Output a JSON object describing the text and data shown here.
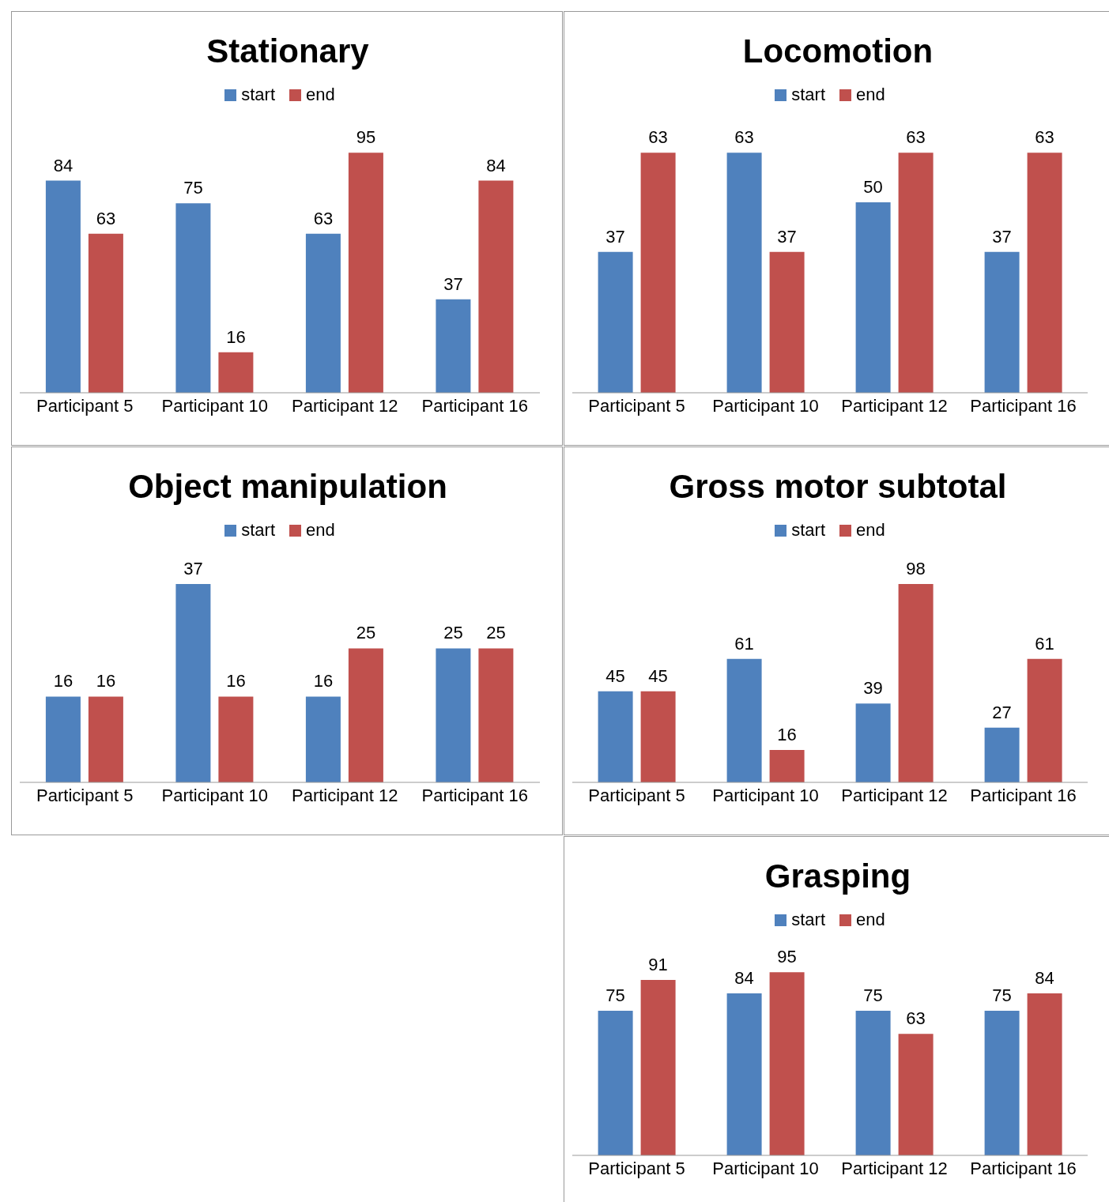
{
  "chart_data": [
    {
      "type": "bar",
      "title": "Stationary",
      "categories": [
        "Participant 5",
        "Participant 10",
        "Participant 12",
        "Participant 16"
      ],
      "series": [
        {
          "name": "start",
          "color": "#4f81bd",
          "values": [
            84,
            75,
            63,
            37
          ]
        },
        {
          "name": "end",
          "color": "#c0504d",
          "values": [
            63,
            16,
            95,
            84
          ]
        }
      ],
      "tick_labels": "x",
      "data_labels": true,
      "legend": "top",
      "grid": false
    },
    {
      "type": "bar",
      "title": "Locomotion",
      "categories": [
        "Participant 5",
        "Participant 10",
        "Participant 12",
        "Participant 16"
      ],
      "series": [
        {
          "name": "start",
          "color": "#4f81bd",
          "values": [
            37,
            63,
            50,
            37
          ]
        },
        {
          "name": "end",
          "color": "#c0504d",
          "values": [
            63,
            37,
            63,
            63
          ]
        }
      ],
      "tick_labels": "x",
      "data_labels": true,
      "legend": "top",
      "grid": false
    },
    {
      "type": "bar",
      "title": "Object manipulation",
      "categories": [
        "Participant 5",
        "Participant 10",
        "Participant 12",
        "Participant 16"
      ],
      "series": [
        {
          "name": "start",
          "color": "#4f81bd",
          "values": [
            16,
            37,
            16,
            25
          ]
        },
        {
          "name": "end",
          "color": "#c0504d",
          "values": [
            16,
            16,
            25,
            25
          ]
        }
      ],
      "tick_labels": "x",
      "data_labels": true,
      "legend": "top",
      "grid": false
    },
    {
      "type": "bar",
      "title": "Gross motor subtotal",
      "categories": [
        "Participant 5",
        "Participant 10",
        "Participant 12",
        "Participant 16"
      ],
      "series": [
        {
          "name": "start",
          "color": "#4f81bd",
          "values": [
            45,
            61,
            39,
            27
          ]
        },
        {
          "name": "end",
          "color": "#c0504d",
          "values": [
            45,
            16,
            98,
            61
          ]
        }
      ],
      "tick_labels": "x",
      "data_labels": true,
      "legend": "top",
      "grid": false
    },
    {
      "type": "bar",
      "title": "Grasping",
      "categories": [
        "Participant 5",
        "Participant 10",
        "Participant 12",
        "Participant 16"
      ],
      "series": [
        {
          "name": "start",
          "color": "#4f81bd",
          "values": [
            75,
            84,
            75,
            75
          ]
        },
        {
          "name": "end",
          "color": "#c0504d",
          "values": [
            91,
            95,
            63,
            84
          ]
        }
      ],
      "tick_labels": "x",
      "data_labels": true,
      "legend": "top",
      "grid": false
    }
  ]
}
